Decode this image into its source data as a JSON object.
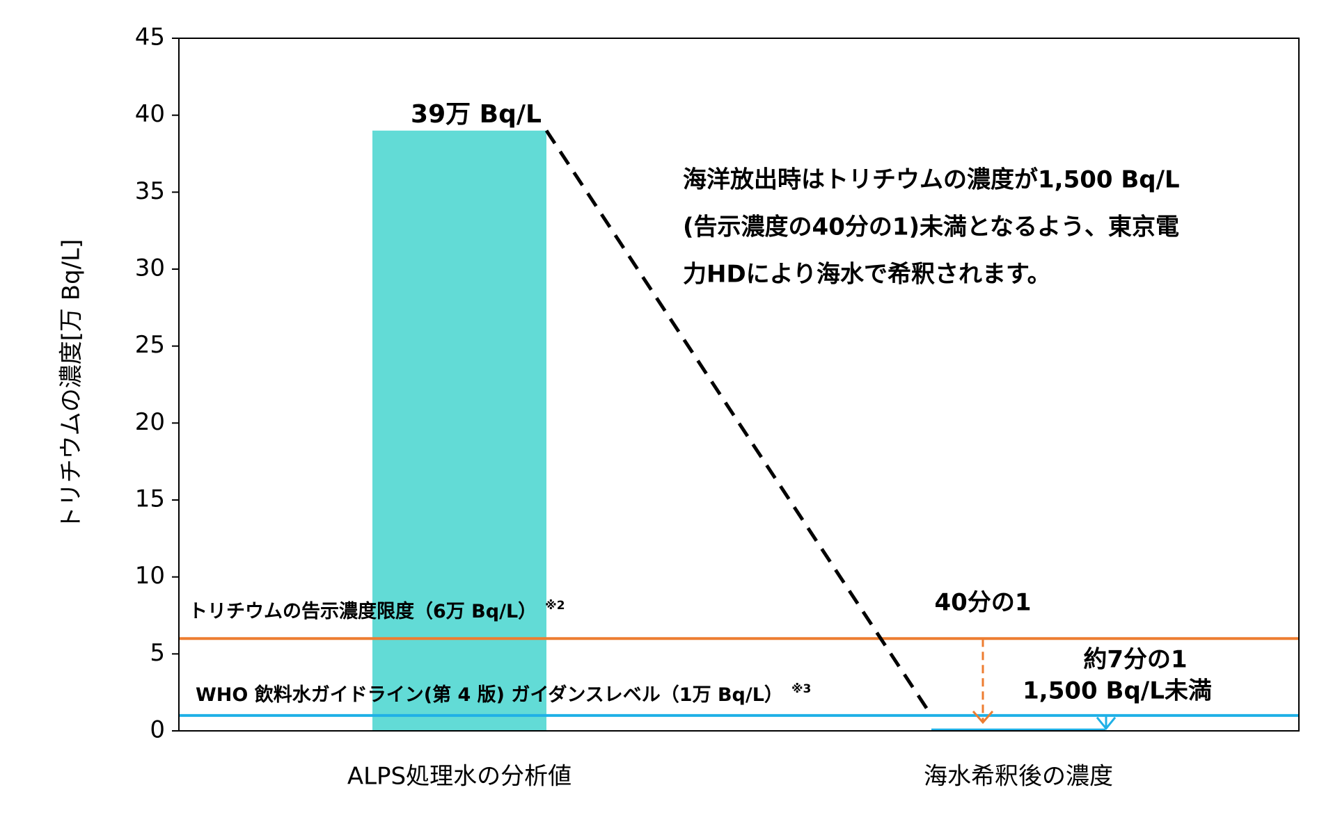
{
  "chart_data": {
    "type": "bar",
    "y_axis_label": "トリチウムの濃度[万 Bq/L]",
    "categories": [
      "ALPS処理水の分析値",
      "海水希釈後の濃度"
    ],
    "values": [
      39,
      0.15
    ],
    "value_labels": [
      "39万 Bq/L",
      "1,500 Bq/L未満"
    ],
    "colors": [
      "#62dbd6",
      "#1fb0e6"
    ],
    "ylim": [
      0,
      45
    ],
    "yticks": [
      0,
      5,
      10,
      15,
      20,
      25,
      30,
      35,
      40,
      45
    ],
    "reference_lines": [
      {
        "value": 6,
        "label": "トリチウムの告示濃度限度（6万 Bq/L）",
        "note": "※2",
        "color": "#ed7d31"
      },
      {
        "value": 1,
        "label": "WHO 飲料水ガイドライン(第 4 版) ガイダンスレベル（1万 Bq/L）",
        "note": "※3",
        "color": "#1fb0e6"
      }
    ],
    "annotations": [
      "40分の1",
      "約7分の1"
    ],
    "description": [
      "海洋放出時はトリチウムの濃度が1,500 Bq/L",
      "(告示濃度の40分の1)未満となるよう、東京電",
      "力HDにより海水で希釈されます。"
    ]
  }
}
